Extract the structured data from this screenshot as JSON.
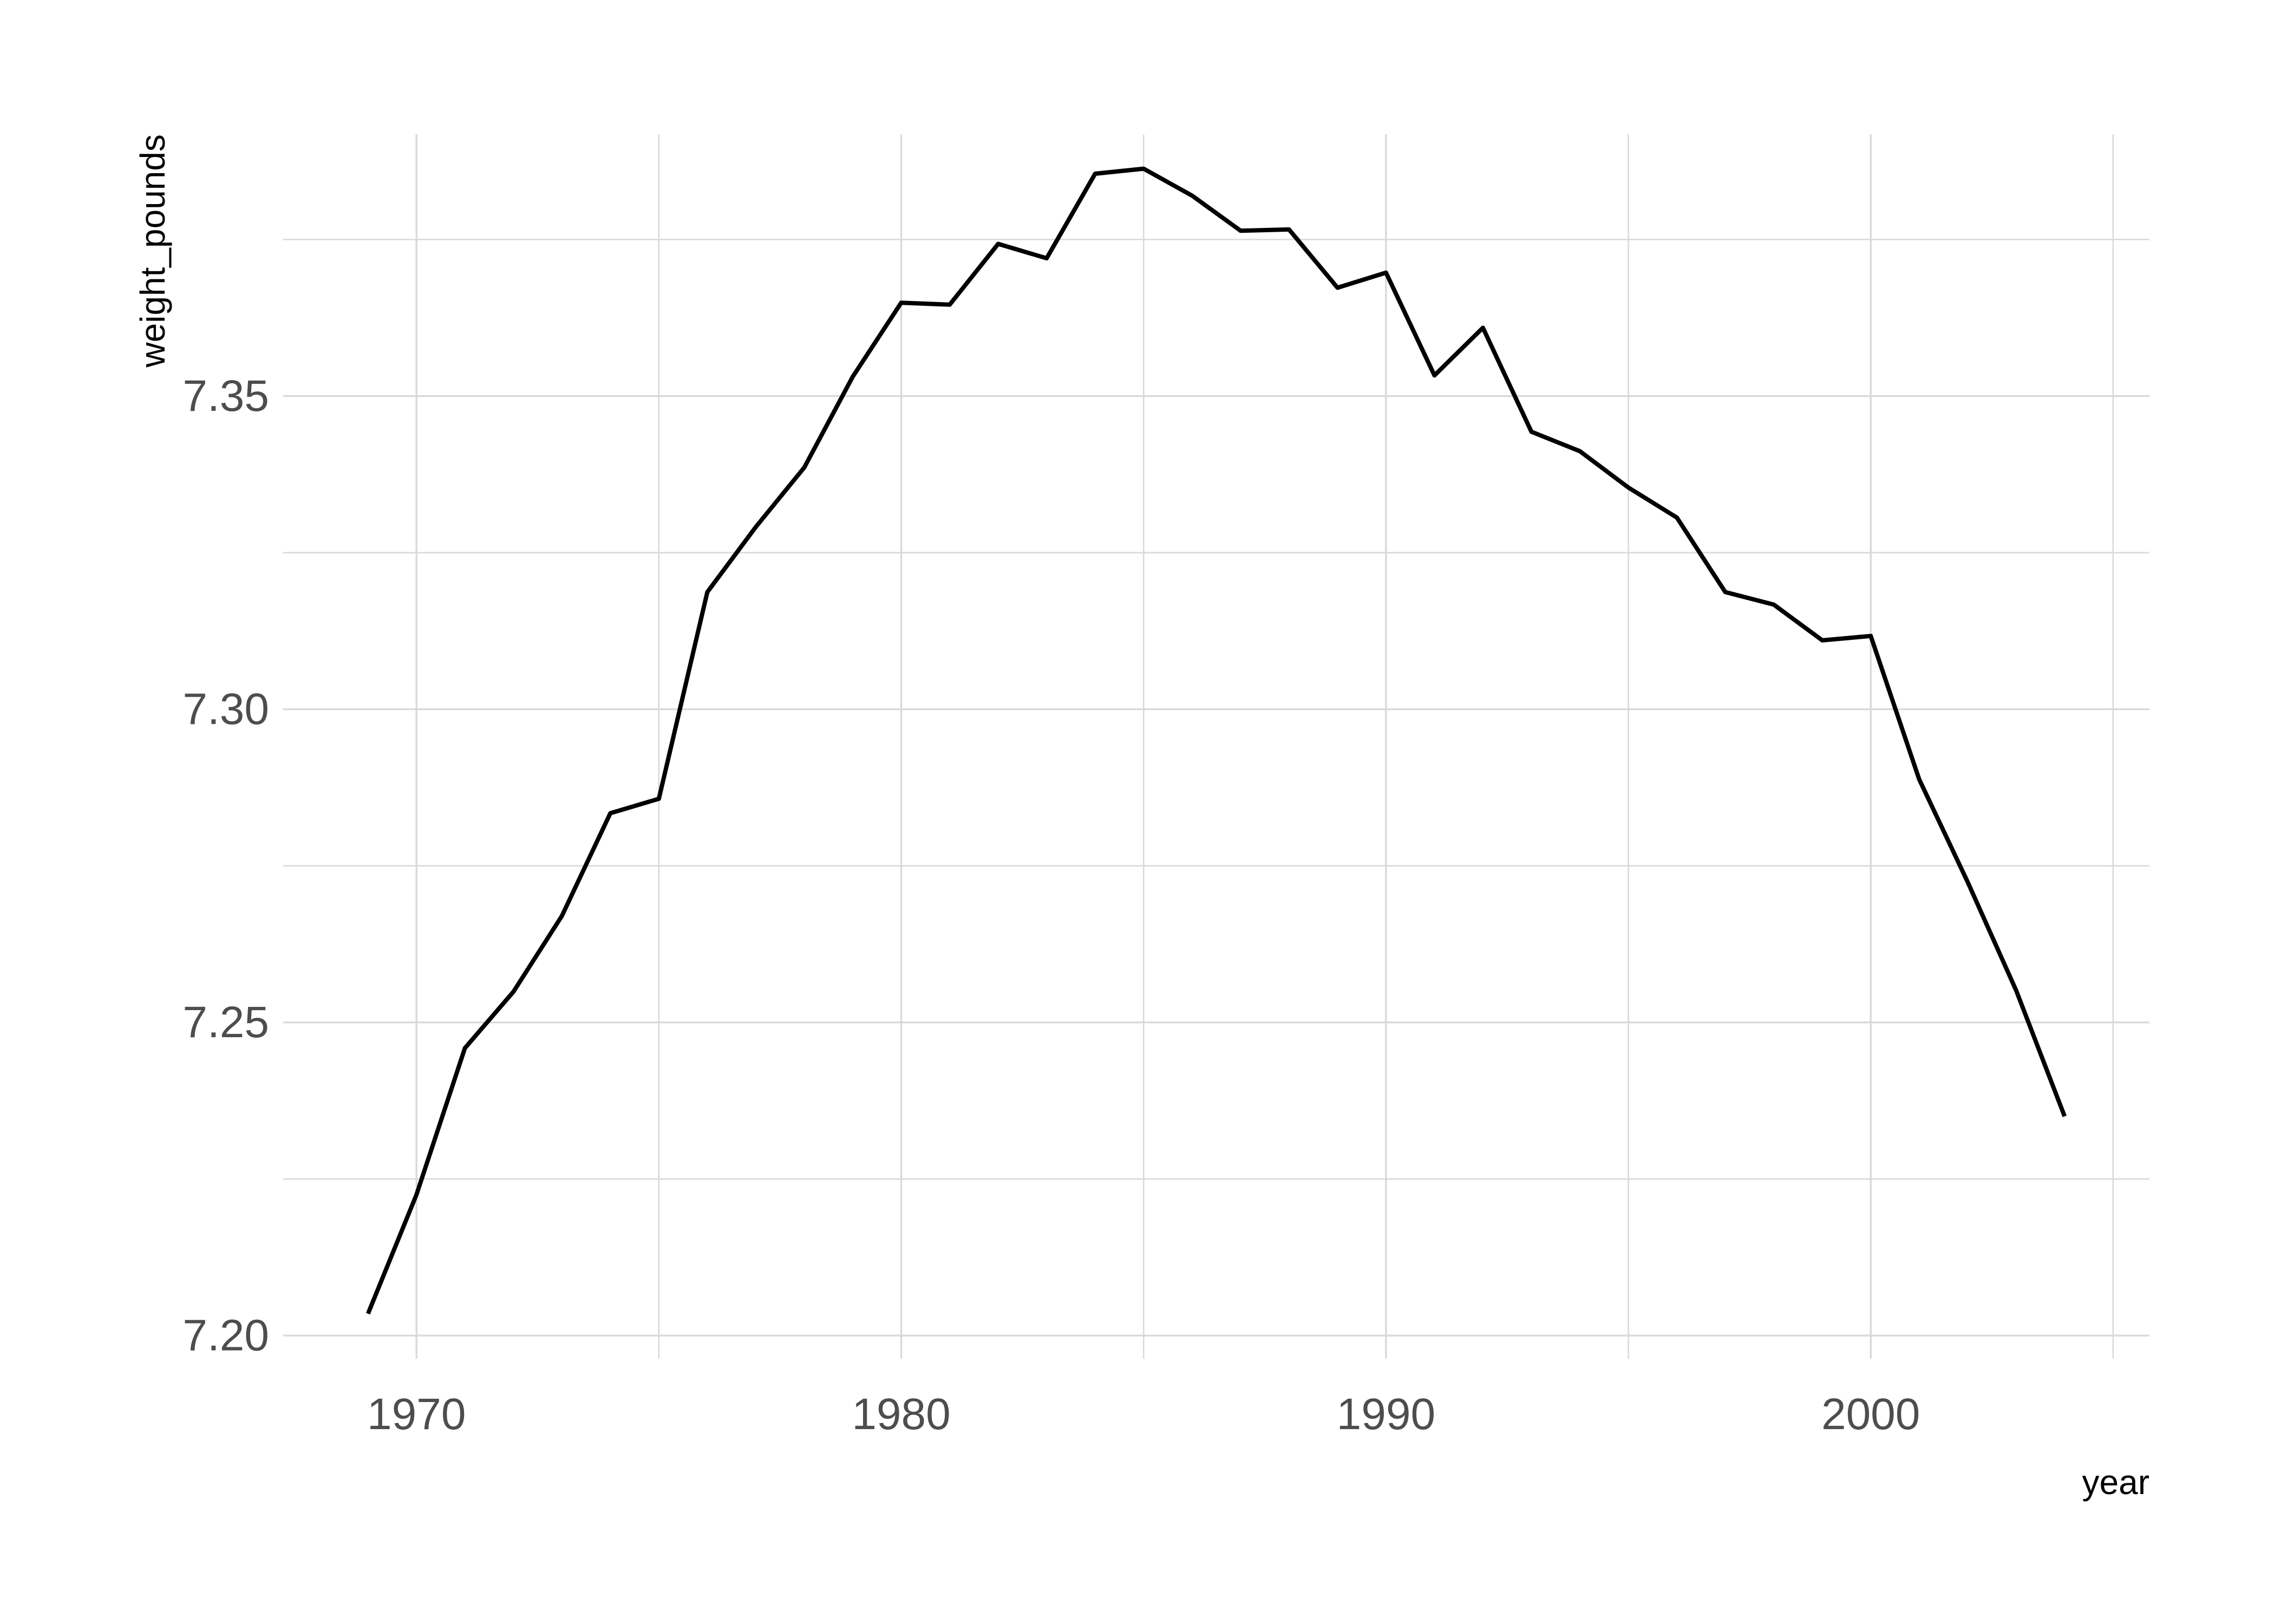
{
  "chart_data": {
    "type": "line",
    "title": "",
    "xlabel": "year",
    "ylabel": "weight_pounds",
    "xlim": [
      1967.25,
      2005.75
    ],
    "ylim": [
      7.1963,
      7.3918
    ],
    "x_ticks": [
      1970,
      1980,
      1990,
      2000
    ],
    "x_tick_labels": [
      "1970",
      "1980",
      "1990",
      "2000"
    ],
    "x_minor_ticks": [
      1975,
      1985,
      1995,
      2005
    ],
    "y_ticks": [
      7.2,
      7.25,
      7.3,
      7.35
    ],
    "y_tick_labels": [
      "7.20",
      "7.25",
      "7.30",
      "7.35"
    ],
    "y_minor_ticks": [
      7.225,
      7.275,
      7.325,
      7.375
    ],
    "grid": true,
    "legend": "none",
    "line_color": "#000000",
    "series": [
      {
        "x": [
          1969,
          1970,
          1971,
          1972,
          1973,
          1974,
          1975,
          1976,
          1977,
          1978,
          1979,
          1980,
          1981,
          1982,
          1983,
          1984,
          1985,
          1986,
          1987,
          1988,
          1989,
          1990,
          1991,
          1992,
          1993,
          1994,
          1995,
          1996,
          1997,
          1998,
          1999,
          2000,
          2001,
          2002,
          2003,
          2004
        ],
        "values": [
          7.2035,
          7.2225,
          7.2459,
          7.2549,
          7.267,
          7.2834,
          7.2857,
          7.3187,
          7.3291,
          7.3386,
          7.3531,
          7.3649,
          7.3646,
          7.3743,
          7.372,
          7.3855,
          7.3863,
          7.382,
          7.3764,
          7.3766,
          7.3673,
          7.3697,
          7.3533,
          7.3609,
          7.3443,
          7.3412,
          7.3354,
          7.3306,
          7.3187,
          7.3167,
          7.311,
          7.3117,
          7.2888,
          7.2724,
          7.2551,
          7.235
        ]
      }
    ]
  }
}
